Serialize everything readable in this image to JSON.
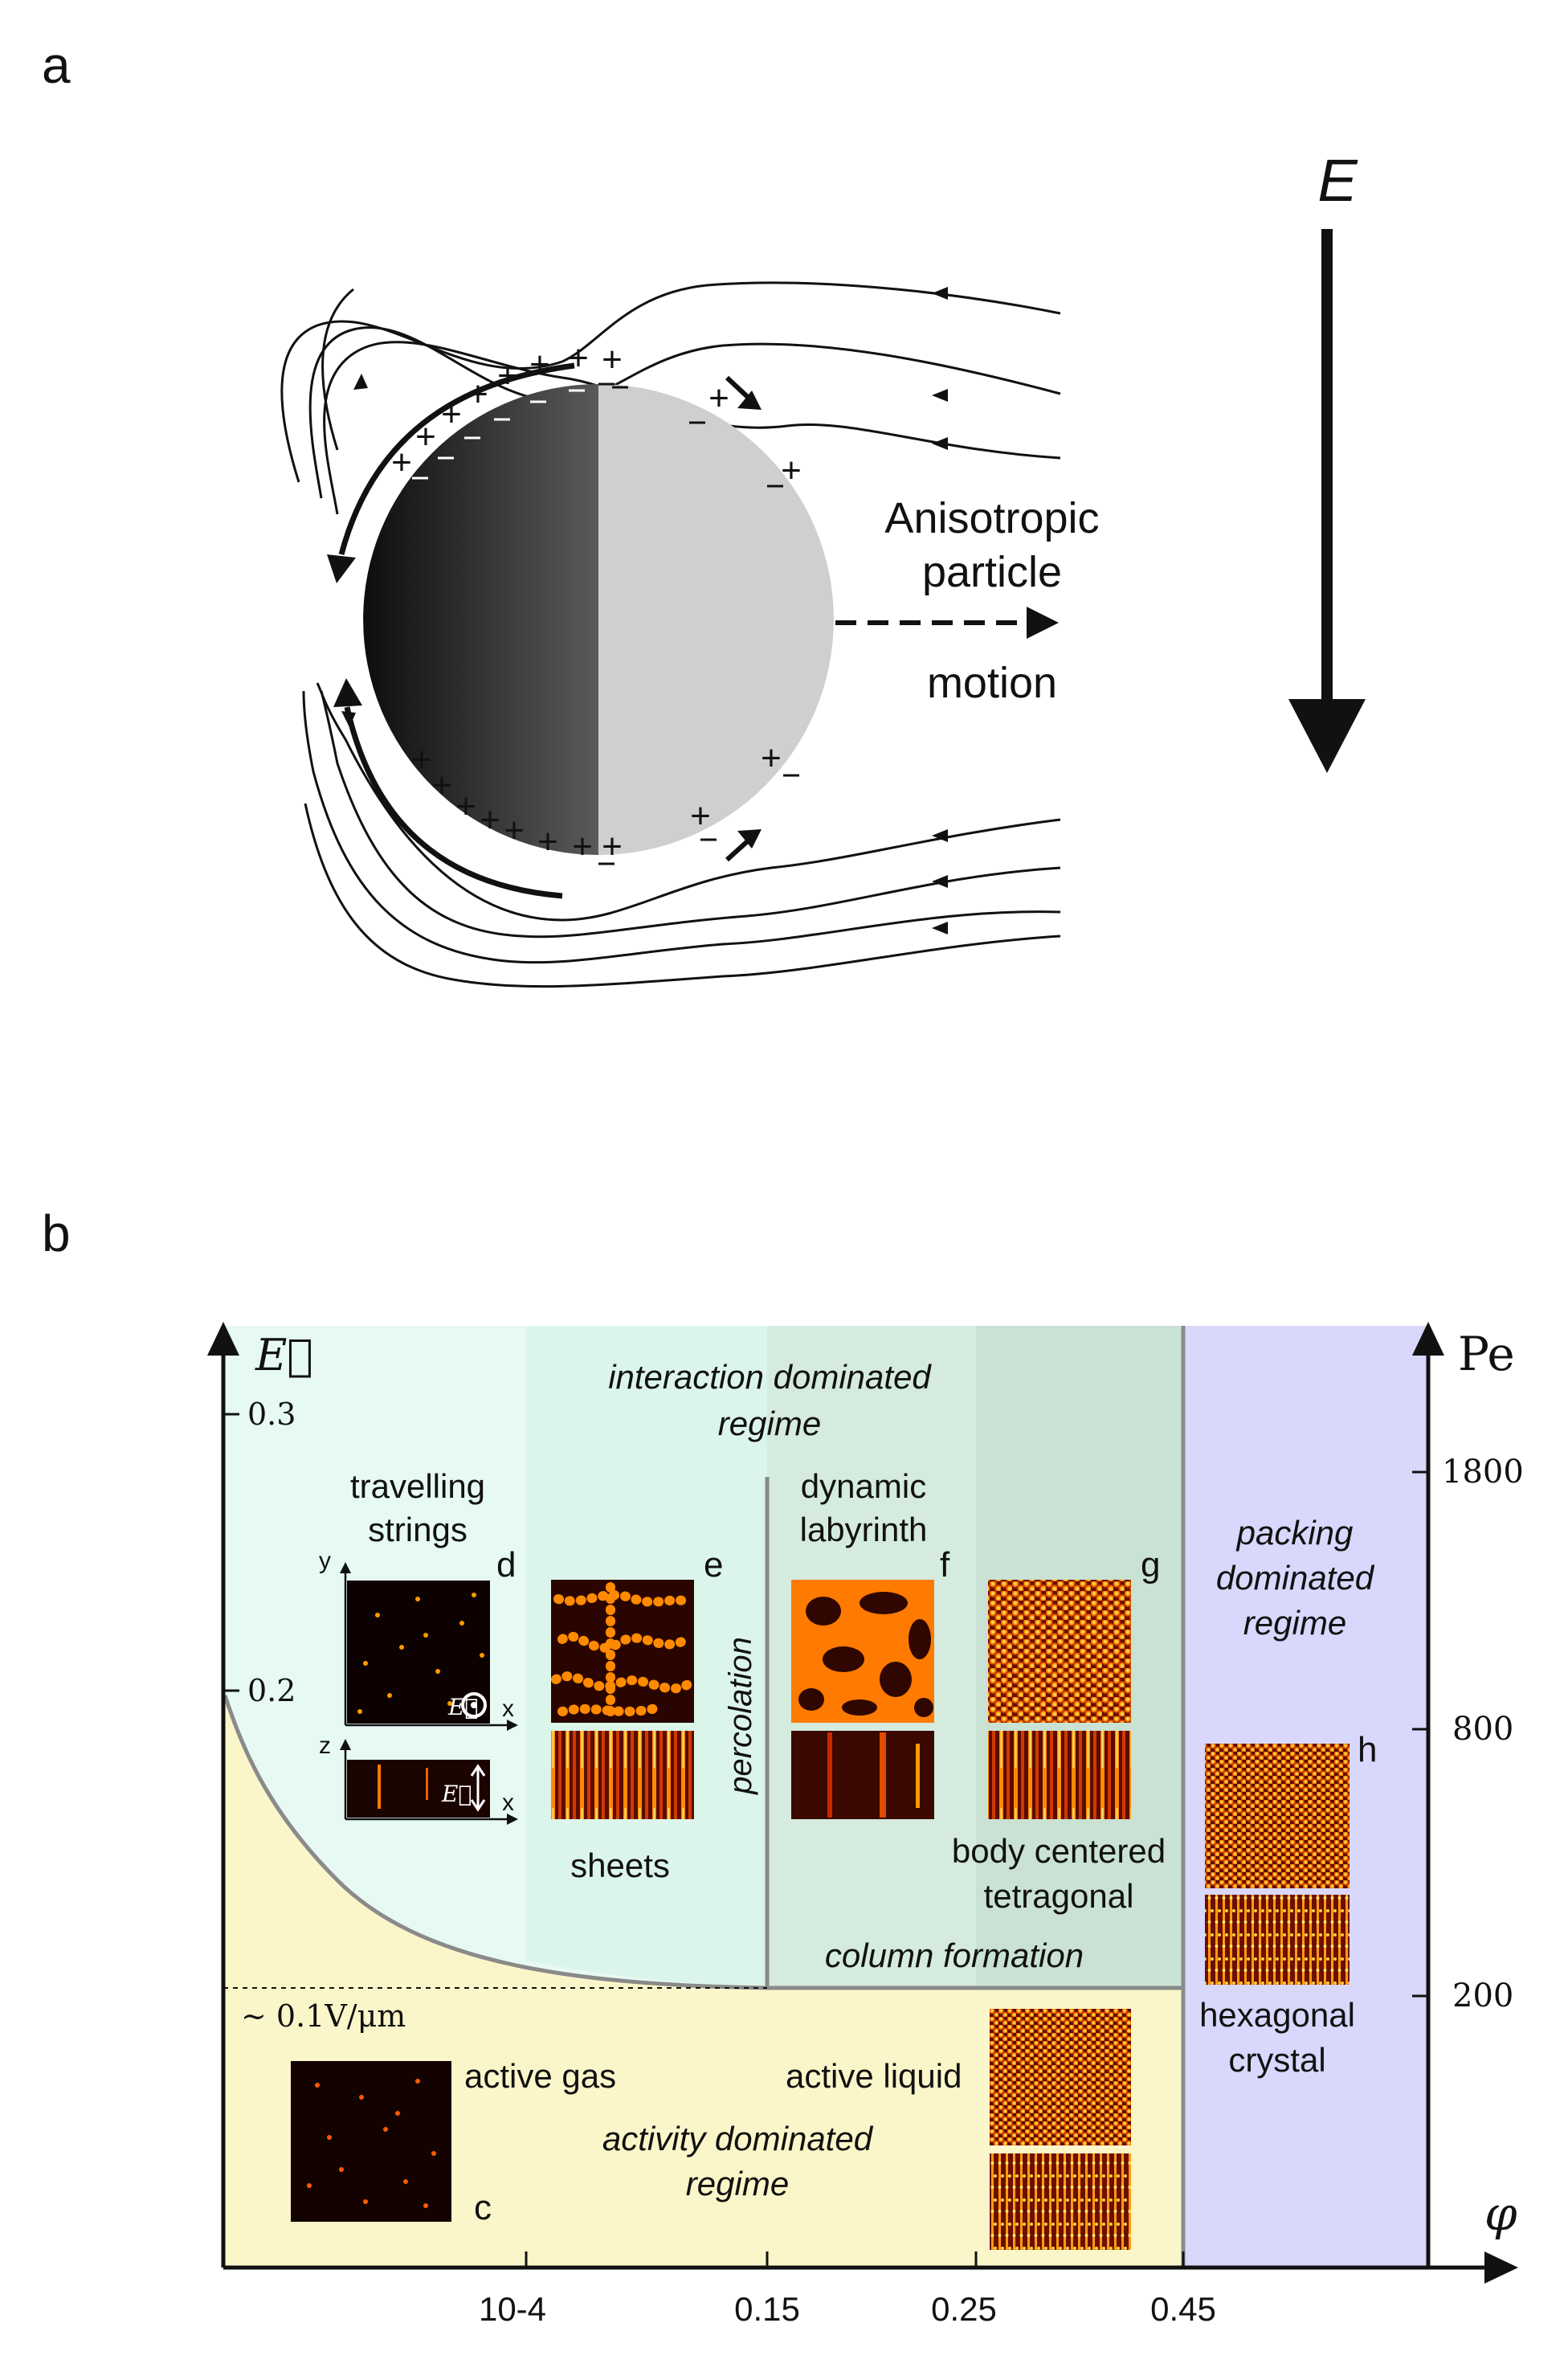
{
  "panel_a": {
    "label": "a",
    "field_label": "E",
    "particle_label_line1": "Anisotropic",
    "particle_label_line2": "particle",
    "motion_label": "motion"
  },
  "panel_b": {
    "label": "b",
    "left_axis_symbol": "E⃗",
    "right_axis_symbol": "Pe",
    "x_axis_symbol": "φ",
    "left_ticks": [
      "0.3",
      "0.2"
    ],
    "right_ticks": [
      "1800",
      "800",
      "200"
    ],
    "x_ticks": [
      "10-4",
      "0.15",
      "0.25",
      "0.45"
    ],
    "threshold_label": "∼ 0.1V/μm",
    "regimes": {
      "interaction_line1": "interaction dominated",
      "interaction_line2": "regime",
      "packing_line1": "packing",
      "packing_line2": "dominated",
      "packing_line3": "regime",
      "activity_line1": "activity dominated",
      "activity_line2": "regime"
    },
    "phases": {
      "travelling_line1": "travelling",
      "travelling_line2": "strings",
      "sheets": "sheets",
      "percolation": "percolation",
      "dynamic_line1": "dynamic",
      "dynamic_line2": "labyrinth",
      "bct_line1": "body centered",
      "bct_line2": "tetragonal",
      "column_formation": "column formation",
      "hex_line1": "hexagonal",
      "hex_line2": "crystal",
      "active_gas": "active gas",
      "active_liquid": "active liquid"
    },
    "inset_letters": [
      "c",
      "d",
      "e",
      "f",
      "g",
      "h"
    ],
    "inset_axes": {
      "y": "y",
      "x": "x",
      "z": "z",
      "efield": "E⃗"
    },
    "colors": {
      "interaction_bg": "#e6f9f2",
      "sheets_bg": "#dcf5ea",
      "labyrinth_bg": "#d4ebde",
      "tetragonal_bg": "#c9e2d4",
      "activity_bg": "#fbf6c9",
      "packing_bg": "#d9d7fb"
    }
  }
}
